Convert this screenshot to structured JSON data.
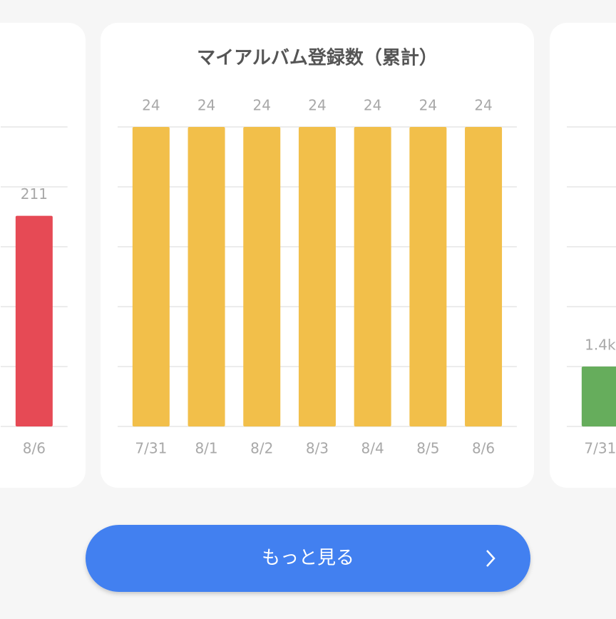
{
  "chart_data": [
    {
      "type": "bar",
      "categories": [
        "8/6"
      ],
      "values": [
        211
      ],
      "color": "#e64a55",
      "ylim": [
        0,
        300
      ],
      "yticks": [
        0,
        60,
        120,
        180,
        240,
        300
      ],
      "grid": true
    },
    {
      "type": "bar",
      "title": "マイアルバム登録数（累計）",
      "categories": [
        "7/31",
        "8/1",
        "8/2",
        "8/3",
        "8/4",
        "8/5",
        "8/6"
      ],
      "values": [
        24,
        24,
        24,
        24,
        24,
        24,
        24
      ],
      "color": "#f2bf4a",
      "ylim": [
        0,
        24
      ],
      "yticks": [
        0,
        4.8,
        9.6,
        14.4,
        19.2,
        24
      ],
      "grid": true
    },
    {
      "type": "bar",
      "categories": [
        "7/31"
      ],
      "values": [
        1400
      ],
      "value_labels": [
        "1.4k"
      ],
      "color": "#66ad5c",
      "ylim": [
        0,
        7000
      ],
      "yticks": [
        0,
        1400,
        2800,
        4200,
        5600,
        7000
      ],
      "grid": true
    }
  ],
  "button": {
    "label": "もっと見る"
  }
}
